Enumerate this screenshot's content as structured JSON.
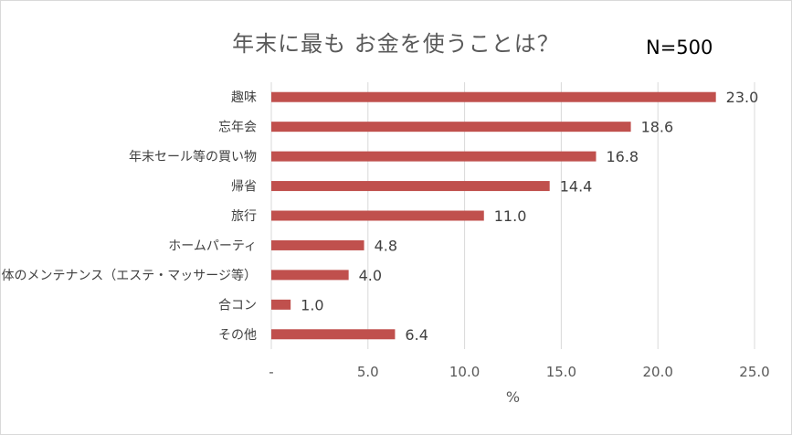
{
  "chart_data": {
    "type": "bar",
    "orientation": "horizontal",
    "title": "年末に最も お金を使うことは？",
    "annotation": "N=500",
    "categories": [
      "趣味",
      "忘年会",
      "年末セール等の買い物",
      "帰省",
      "旅行",
      "ホームパーティ",
      "体のメンテナンス（エステ・マッサージ等）",
      "合コン",
      "その他"
    ],
    "values": [
      23.0,
      18.6,
      16.8,
      14.4,
      11.0,
      4.8,
      4.0,
      1.0,
      6.4
    ],
    "value_labels": [
      "23.0",
      "18.6",
      "16.8",
      "14.4",
      "11.0",
      "4.8",
      "4.0",
      "1.0",
      "6.4"
    ],
    "xlabel": "%",
    "xlim": [
      0,
      25
    ],
    "x_ticks": [
      0,
      5,
      10,
      15,
      20,
      25
    ],
    "x_tick_labels": [
      "-",
      "5.0",
      "10.0",
      "15.0",
      "20.0",
      "25.0"
    ],
    "grid": true,
    "legend": "none",
    "bar_color": "#c0504d",
    "grid_color": "#d9d9d9"
  }
}
